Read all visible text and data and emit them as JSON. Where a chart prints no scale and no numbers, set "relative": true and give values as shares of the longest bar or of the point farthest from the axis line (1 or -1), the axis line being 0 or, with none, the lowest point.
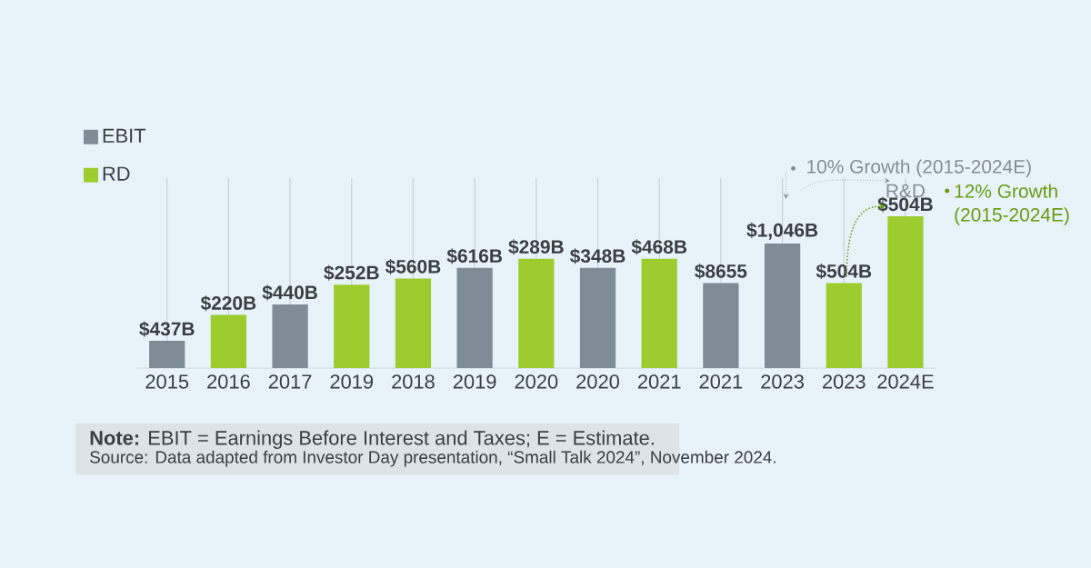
{
  "chart_data": {
    "type": "bar",
    "relative": true,
    "categories": [
      "2015",
      "2016",
      "2017",
      "2019",
      "2018",
      "2019",
      "2020",
      "2020",
      "2021",
      "2021",
      "2023",
      "2023",
      "2024E"
    ],
    "series": [
      {
        "name": "EBIT",
        "color": "#7f8c95",
        "values": [
          0.18,
          null,
          0.42,
          null,
          null,
          0.66,
          null,
          0.66,
          null,
          0.56,
          0.82,
          null,
          null
        ]
      },
      {
        "name": "RD",
        "color": "#9ccc2e",
        "values": [
          null,
          0.35,
          null,
          0.55,
          0.59,
          null,
          0.72,
          null,
          0.72,
          null,
          null,
          0.56,
          1
        ]
      }
    ],
    "value_labels": [
      "$437B",
      "$220B",
      "$440B",
      "$252B",
      "$560B",
      "$616B",
      "$289B",
      "$348B",
      "$468B",
      "$8655",
      "$1,046B",
      "$504B",
      "$504B"
    ],
    "grid": "x",
    "legend": "top left",
    "annotations": [
      "10% Growth (2015-2024E)",
      "R&D",
      "12% Growth (2015-2024E)",
      "**Note:** EBIT = Earnings Before Interest and Taxes; E = Estimate.",
      "Source: Data adapted from Investor Day presentation, “Small Talk 2024”, November 2024."
    ]
  }
}
